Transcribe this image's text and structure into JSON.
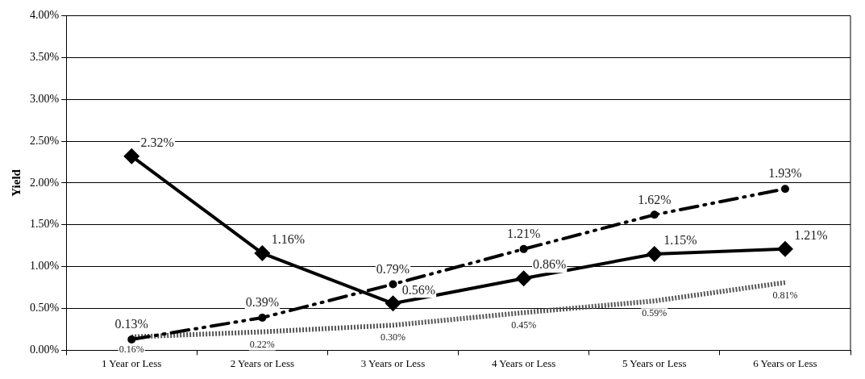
{
  "chart_data": {
    "type": "line",
    "ylabel": "Yield",
    "categories": [
      "1 Year or Less",
      "2 Years or Less",
      "3 Years or Less",
      "4 Years or Less",
      "5 Years or Less",
      "6 Years or Less"
    ],
    "series": [
      {
        "color": "#000000",
        "marker": "diamond",
        "line_style": "solid",
        "values": [
          2.32,
          1.16,
          0.56,
          0.86,
          1.15,
          1.21
        ],
        "value_labels": [
          "2.32%",
          "1.16%",
          "0.56%",
          "0.86%",
          "1.15%",
          "1.21%"
        ]
      },
      {
        "color": "#000000",
        "marker": "circle",
        "line_style": "dashed",
        "values": [
          0.13,
          0.39,
          0.79,
          1.21,
          1.62,
          1.93
        ],
        "value_labels": [
          "0.13%",
          "0.39%",
          "0.79%",
          "1.21%",
          "1.62%",
          "1.93%"
        ]
      },
      {
        "color": "#555555",
        "marker": "none",
        "line_style": "dotted",
        "values": [
          0.16,
          0.22,
          0.3,
          0.45,
          0.59,
          0.81
        ],
        "value_labels": [
          "0.16%",
          "0.22%",
          "0.30%",
          "0.45%",
          "0.59%",
          "0.81%"
        ]
      }
    ],
    "ylim": [
      0,
      4
    ],
    "yticks": [
      {
        "value": 0,
        "label": "0.00%"
      },
      {
        "value": 0.5,
        "label": "0.50%"
      },
      {
        "value": 1,
        "label": "1.00%"
      },
      {
        "value": 1.5,
        "label": "1.50%"
      },
      {
        "value": 2,
        "label": "2.00%"
      },
      {
        "value": 2.5,
        "label": "2.50%"
      },
      {
        "value": 3,
        "label": "3.00%"
      },
      {
        "value": 3.5,
        "label": "3.50%"
      },
      {
        "value": 4,
        "label": "4.00%"
      }
    ],
    "grid": "y",
    "legend": false
  }
}
